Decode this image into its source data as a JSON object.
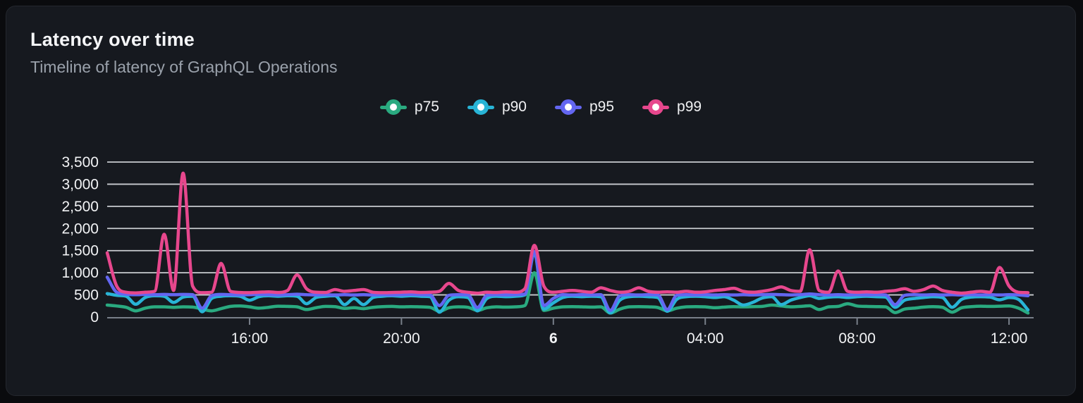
{
  "header": {
    "title": "Latency over time",
    "subtitle": "Timeline of latency of GraphQL Operations"
  },
  "theme": {
    "page_background": "#0a0b0e",
    "card_background": "#16191f",
    "card_border": "#24272e",
    "grid_color": "#d9dce0",
    "axis_color": "#787f89",
    "title_color": "#f5f6f8",
    "subtitle_color": "#9aa1ab",
    "tick_text_color": "#f2f3f5"
  },
  "chart_data": {
    "type": "line",
    "title": "Latency over time",
    "subtitle": "Timeline of latency of GraphQL Operations",
    "unit": "ms",
    "grid": true,
    "legend_position": "top",
    "x_start_time": "12:15",
    "x_interval_minutes": 15,
    "x_axis": {
      "t_min": 12.25,
      "t_max": 36.5,
      "ticks": [
        {
          "label": "16:00",
          "t": 16,
          "emphasis": false
        },
        {
          "label": "20:00",
          "t": 20,
          "emphasis": false
        },
        {
          "label": "6",
          "t": 24,
          "emphasis": true
        },
        {
          "label": "04:00",
          "t": 28,
          "emphasis": false
        },
        {
          "label": "08:00",
          "t": 32,
          "emphasis": false
        },
        {
          "label": "12:00",
          "t": 36,
          "emphasis": false
        }
      ]
    },
    "y_axis": {
      "min": 0,
      "max": 3500,
      "tick_step": 500,
      "tick_labels": [
        "0",
        "500",
        "1,000",
        "1,500",
        "2,000",
        "2,500",
        "3,000",
        "3,500"
      ]
    },
    "series": [
      {
        "name": "p75",
        "color": "#2aaa80",
        "values": [
          270,
          250,
          220,
          140,
          200,
          230,
          230,
          220,
          230,
          225,
          180,
          140,
          190,
          240,
          250,
          230,
          200,
          220,
          245,
          240,
          230,
          170,
          210,
          240,
          235,
          195,
          210,
          190,
          220,
          235,
          240,
          230,
          235,
          230,
          220,
          130,
          210,
          230,
          220,
          150,
          210,
          230,
          225,
          230,
          260,
          1000,
          150,
          200,
          230,
          235,
          230,
          225,
          230,
          90,
          180,
          230,
          235,
          230,
          215,
          140,
          200,
          230,
          235,
          230,
          210,
          225,
          235,
          230,
          235,
          240,
          270,
          250,
          230,
          240,
          255,
          170,
          230,
          240,
          300,
          250,
          240,
          235,
          230,
          100,
          180,
          200,
          225,
          235,
          220,
          110,
          210,
          235,
          245,
          240,
          245,
          250,
          200,
          90
        ]
      },
      {
        "name": "p90",
        "color": "#28b4d6",
        "values": [
          530,
          490,
          470,
          290,
          440,
          480,
          470,
          330,
          450,
          470,
          120,
          420,
          470,
          480,
          470,
          380,
          460,
          480,
          470,
          480,
          470,
          300,
          440,
          470,
          480,
          280,
          420,
          280,
          440,
          470,
          480,
          470,
          480,
          470,
          460,
          110,
          380,
          460,
          440,
          140,
          420,
          470,
          460,
          470,
          500,
          1450,
          180,
          320,
          440,
          470,
          460,
          470,
          460,
          90,
          380,
          460,
          470,
          460,
          440,
          130,
          400,
          460,
          470,
          460,
          440,
          460,
          380,
          270,
          330,
          430,
          460,
          280,
          380,
          440,
          480,
          420,
          450,
          460,
          440,
          460,
          470,
          460,
          450,
          220,
          380,
          420,
          440,
          460,
          440,
          220,
          400,
          450,
          460,
          450,
          390,
          440,
          400,
          160
        ]
      },
      {
        "name": "p95",
        "color": "#6366f1",
        "values": [
          900,
          560,
          515,
          505,
          510,
          505,
          510,
          505,
          510,
          505,
          200,
          480,
          510,
          505,
          500,
          505,
          510,
          505,
          500,
          505,
          515,
          505,
          500,
          505,
          500,
          505,
          500,
          505,
          500,
          505,
          500,
          505,
          510,
          505,
          500,
          260,
          490,
          505,
          500,
          215,
          490,
          505,
          500,
          505,
          520,
          1480,
          260,
          420,
          505,
          500,
          505,
          500,
          505,
          150,
          480,
          505,
          500,
          505,
          500,
          170,
          490,
          505,
          500,
          505,
          500,
          505,
          500,
          505,
          500,
          505,
          510,
          505,
          500,
          505,
          520,
          505,
          500,
          505,
          500,
          505,
          500,
          505,
          500,
          280,
          490,
          505,
          500,
          505,
          500,
          505,
          500,
          505,
          500,
          505,
          500,
          505,
          500,
          480
        ]
      },
      {
        "name": "p99",
        "color": "#e7478d",
        "values": [
          1450,
          700,
          560,
          545,
          560,
          580,
          1870,
          600,
          3250,
          700,
          550,
          560,
          1210,
          580,
          555,
          550,
          560,
          570,
          555,
          600,
          950,
          640,
          560,
          555,
          620,
          580,
          600,
          620,
          560,
          550,
          555,
          560,
          570,
          555,
          560,
          580,
          760,
          600,
          560,
          540,
          560,
          555,
          570,
          560,
          640,
          1620,
          700,
          560,
          580,
          600,
          580,
          560,
          660,
          600,
          560,
          580,
          660,
          580,
          560,
          570,
          560,
          580,
          560,
          570,
          600,
          620,
          650,
          580,
          560,
          580,
          620,
          680,
          600,
          580,
          1520,
          600,
          560,
          1040,
          580,
          560,
          570,
          560,
          580,
          600,
          640,
          580,
          620,
          700,
          600,
          560,
          540,
          560,
          580,
          560,
          1120,
          700,
          560,
          550
        ]
      }
    ]
  }
}
